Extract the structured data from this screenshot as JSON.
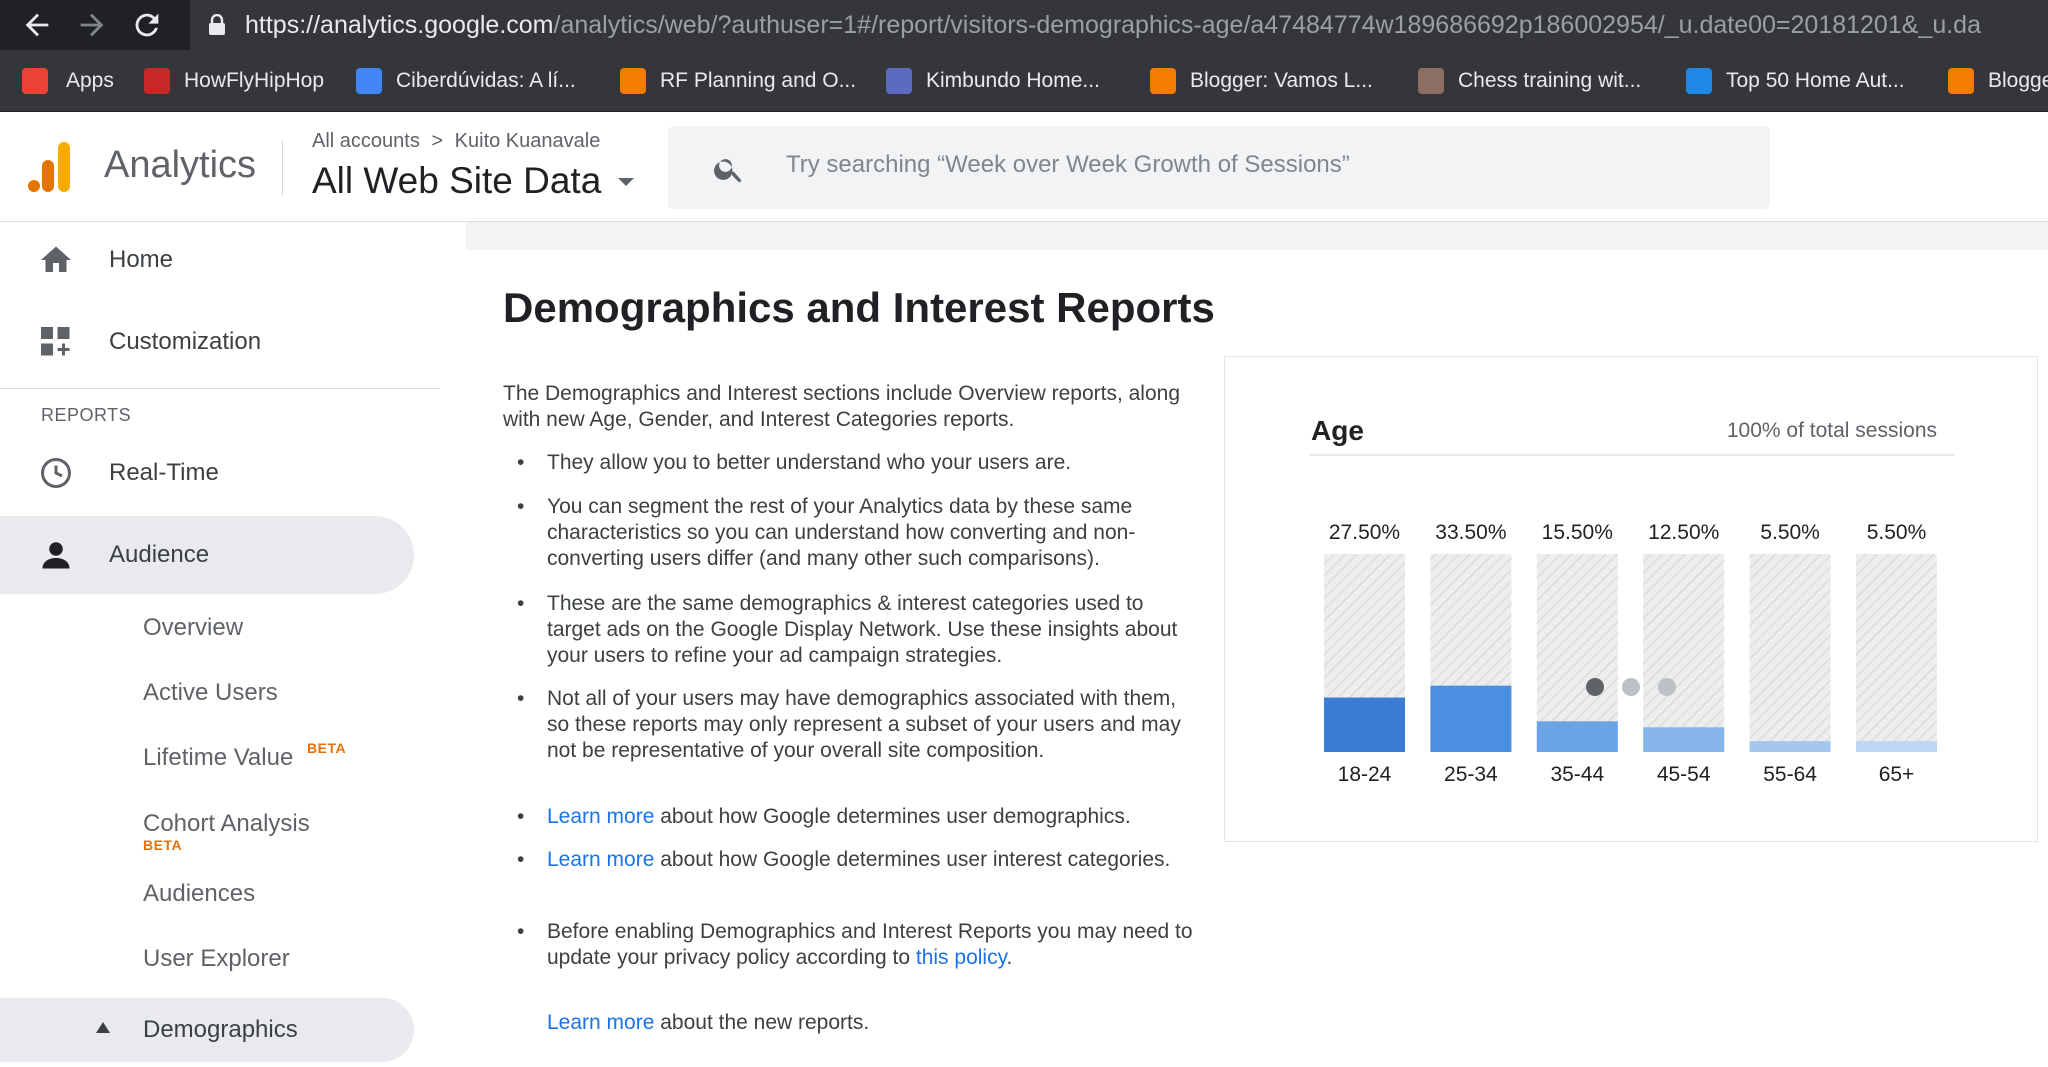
{
  "browser": {
    "url_host": "https://analytics.google.com",
    "url_path": "/analytics/web/?authuser=1#/report/visitors-demographics-age/a47484774w189686692p186002954/_u.date00=20181201&_u.da",
    "back_icon": "arrow-left-icon",
    "forward_icon": "arrow-right-icon",
    "reload_icon": "reload-icon",
    "bookmarks": [
      {
        "label": "Apps",
        "icon": "apps-grid-icon",
        "color": "#ea4335"
      },
      {
        "label": "HowFlyHipHop",
        "icon": "site-icon",
        "color": "#c62828"
      },
      {
        "label": "Ciberdúvidas: A lí...",
        "icon": "globe-icon",
        "color": "#4285f4"
      },
      {
        "label": "RF Planning and O...",
        "icon": "blogger-icon",
        "color": "#f57c00"
      },
      {
        "label": "Kimbundo Home...",
        "icon": "site-icon",
        "color": "#5c6bc0"
      },
      {
        "label": "Blogger: Vamos L...",
        "icon": "blogger-icon",
        "color": "#f57c00"
      },
      {
        "label": "Chess training wit...",
        "icon": "chess-icon",
        "color": "#8d6e63"
      },
      {
        "label": "Top 50 Home Aut...",
        "icon": "drupal-icon",
        "color": "#1e88e5"
      },
      {
        "label": "Blogge",
        "icon": "blogger-icon",
        "color": "#f57c00"
      }
    ]
  },
  "header": {
    "product": "Analytics",
    "breadcrumb_root": "All accounts",
    "breadcrumb_sep": ">",
    "breadcrumb_account": "Kuito Kuanavale",
    "view_name": "All Web Site Data",
    "search_placeholder": "Try searching “Week over Week Growth of Sessions”",
    "logo_colors": [
      "#f9ab00",
      "#e37400",
      "#e37400"
    ]
  },
  "sidebar": {
    "home": "Home",
    "customization": "Customization",
    "section_reports": "REPORTS",
    "realtime": "Real-Time",
    "audience": "Audience",
    "audience_items": {
      "overview": "Overview",
      "active_users": "Active Users",
      "lifetime_value": "Lifetime Value",
      "cohort_analysis": "Cohort Analysis",
      "audiences": "Audiences",
      "user_explorer": "User Explorer",
      "demographics": "Demographics"
    },
    "beta_label": "BETA"
  },
  "main": {
    "title": "Demographics and Interest Reports",
    "intro": "The Demographics and Interest sections include Overview reports, along with new Age, Gender, and Interest Categories reports.",
    "bullets": [
      {
        "pre": "They allow you to better understand who your users are.",
        "link": "",
        "post": ""
      },
      {
        "pre": "You can segment the rest of your Analytics data by these same characteristics so you can understand how converting and non-converting users differ (and many other such comparisons).",
        "link": "",
        "post": ""
      },
      {
        "pre": "These are the same demographics & interest categories used to target ads on the Google Display Network. Use these insights about your users to refine your ad campaign strategies.",
        "link": "",
        "post": ""
      },
      {
        "pre": "Not all of your users may have demographics associated with them, so these reports may only represent a subset of your users and may not be representative of your overall site composition.",
        "link": "",
        "post": ""
      },
      {
        "pre": "",
        "link": "Learn more",
        "post": " about how Google determines user demographics."
      },
      {
        "pre": "",
        "link": "Learn more",
        "post": " about how Google determines user interest categories."
      },
      {
        "pre": "Before enabling Demographics and Interest Reports you may need to update your privacy policy according to ",
        "link": "this policy",
        "post": "."
      }
    ],
    "footer_link": "Learn more",
    "footer_text": " about the new reports.",
    "carousel_active": 0,
    "carousel_count": 3
  },
  "chart_data": {
    "type": "bar",
    "title": "Age",
    "subtitle": "100% of total sessions",
    "categories": [
      "18-24",
      "25-34",
      "35-44",
      "45-54",
      "55-64",
      "65+"
    ],
    "values": [
      27.5,
      33.5,
      15.5,
      12.5,
      5.5,
      5.5
    ],
    "value_labels": [
      "27.50%",
      "33.50%",
      "15.50%",
      "12.50%",
      "5.50%",
      "5.50%"
    ],
    "ylim": [
      0,
      100
    ],
    "colors": [
      "#3a7bd5",
      "#4a8fe0",
      "#6aa3e6",
      "#86b5eb",
      "#a4c7f0",
      "#bcd6f4"
    ]
  }
}
